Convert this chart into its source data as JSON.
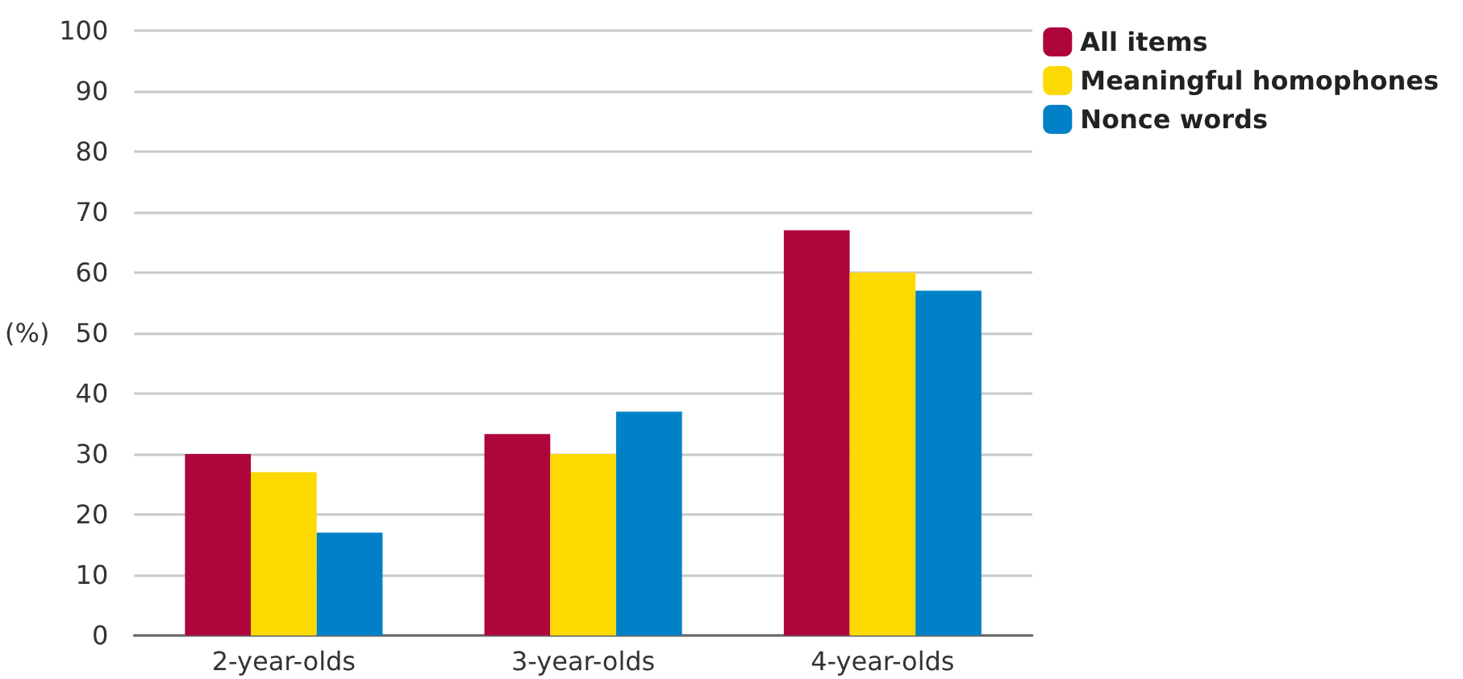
{
  "chart_data": {
    "type": "bar",
    "ylabel": "(%)",
    "categories": [
      "2-year-olds",
      "3-year-olds",
      "4-year-olds"
    ],
    "series": [
      {
        "name": "All items",
        "color": "#ae063b",
        "values": [
          30,
          33.3,
          67
        ]
      },
      {
        "name": "Meaningful homophones",
        "color": "#fcd900",
        "values": [
          27,
          30,
          60
        ]
      },
      {
        "name": "Nonce words",
        "color": "#0081c7",
        "values": [
          17,
          37,
          57
        ]
      }
    ],
    "ylim": [
      0,
      100
    ],
    "yticks": [
      0,
      10,
      20,
      30,
      40,
      50,
      60,
      70,
      80,
      90,
      100
    ],
    "grid": "y",
    "legend": "top right"
  }
}
